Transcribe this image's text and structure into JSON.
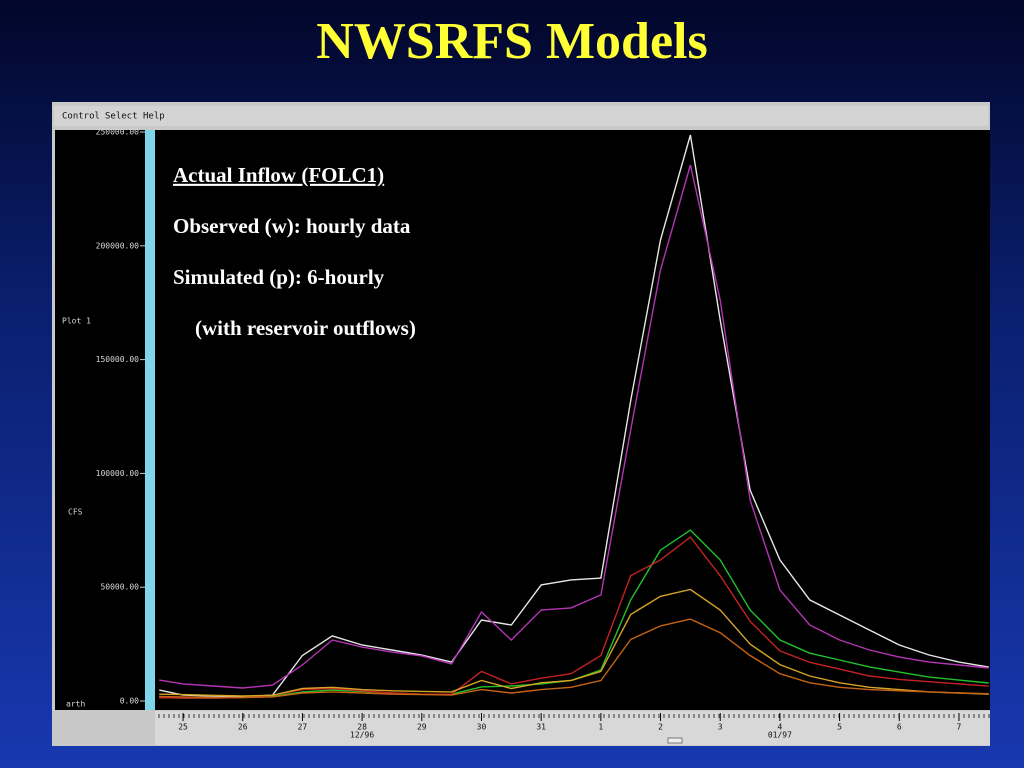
{
  "slide_title": "NWSRFS Models",
  "window": {
    "menu": [
      "Control",
      "Select",
      "Help"
    ],
    "side_labels": [
      "Plot 1",
      "CFS",
      "arth"
    ]
  },
  "chart_data": {
    "type": "line",
    "annotations": [
      "Actual Inflow (FOLC1)",
      "Observed (w): hourly data",
      "Simulated (p): 6-hourly",
      "(with reservoir outflows)"
    ],
    "x": [
      -0.4,
      0,
      0.5,
      1,
      1.5,
      2,
      2.5,
      3,
      3.5,
      4,
      4.5,
      5,
      5.5,
      6,
      6.5,
      7,
      7.5,
      8,
      8.5,
      9,
      9.5,
      10,
      10.5,
      11,
      11.5,
      12,
      12.5,
      13,
      13.5
    ],
    "xlim": [
      -0.47,
      13.52
    ],
    "xticks": [
      {
        "value": 0,
        "label": "25"
      },
      {
        "value": 1,
        "label": "26"
      },
      {
        "value": 2,
        "label": "27"
      },
      {
        "value": 3,
        "label": "28"
      },
      {
        "value": 4,
        "label": "29"
      },
      {
        "value": 5,
        "label": "30"
      },
      {
        "value": 6,
        "label": "31"
      },
      {
        "value": 7,
        "label": "1"
      },
      {
        "value": 8,
        "label": "2"
      },
      {
        "value": 9,
        "label": "3"
      },
      {
        "value": 10,
        "label": "4"
      },
      {
        "value": 11,
        "label": "5"
      },
      {
        "value": 12,
        "label": "6"
      },
      {
        "value": 13,
        "label": "7"
      }
    ],
    "date_labels": [
      {
        "value": 3,
        "label": "12/96"
      },
      {
        "value": 10,
        "label": "01/97"
      }
    ],
    "ylim": [
      0,
      250000
    ],
    "yticks": [
      {
        "value": 0,
        "label": "0.00"
      },
      {
        "value": 50000,
        "label": "50000.00"
      },
      {
        "value": 100000,
        "label": "100000.00"
      },
      {
        "value": 150000,
        "label": "150000.00"
      },
      {
        "value": 200000,
        "label": "200000.00"
      },
      {
        "value": 250000,
        "label": "250000.00"
      }
    ],
    "series": [
      {
        "color": "#e6e6e6",
        "values": [
          4800,
          2600,
          2200,
          1800,
          2600,
          20000,
          28600,
          24600,
          22400,
          20200,
          17100,
          35600,
          33400,
          51000,
          53200,
          54000,
          132000,
          202600,
          248700,
          167400,
          92700,
          62000,
          44400,
          37800,
          31200,
          24600,
          20200,
          17100,
          14900
        ]
      },
      {
        "color": "#b435b4",
        "values": [
          9200,
          7500,
          6600,
          5700,
          7000,
          15800,
          26800,
          23700,
          21500,
          19800,
          16300,
          39100,
          26800,
          40000,
          40900,
          46600,
          119100,
          189400,
          235500,
          176200,
          88300,
          48800,
          33400,
          26800,
          22400,
          19300,
          17100,
          15800,
          14500
        ]
      },
      {
        "color": "#22c22a",
        "values": [
          1500,
          1300,
          1300,
          1500,
          2000,
          4000,
          4800,
          4200,
          3500,
          3000,
          3000,
          6200,
          6600,
          7500,
          9000,
          13600,
          44400,
          66300,
          75100,
          62000,
          40000,
          26800,
          21000,
          18000,
          15000,
          12700,
          10500,
          9200,
          7900
        ]
      },
      {
        "color": "#c42222",
        "values": [
          1500,
          1300,
          1300,
          1500,
          2500,
          5000,
          5500,
          4500,
          3500,
          3000,
          3000,
          13000,
          7500,
          10000,
          12000,
          20000,
          55000,
          62000,
          72000,
          55000,
          35000,
          22000,
          17000,
          14000,
          11000,
          9500,
          8500,
          7500,
          6500
        ]
      },
      {
        "color": "#d4a424",
        "values": [
          3000,
          2800,
          2500,
          2200,
          2500,
          5500,
          6000,
          5000,
          4500,
          4200,
          4000,
          9000,
          5500,
          8000,
          9000,
          13000,
          38000,
          46000,
          49000,
          40000,
          25000,
          16000,
          11000,
          8000,
          6000,
          5000,
          4000,
          3500,
          3000
        ]
      },
      {
        "color": "#c46414",
        "values": [
          2000,
          1800,
          1600,
          1500,
          1800,
          3500,
          4000,
          3500,
          3000,
          2800,
          2600,
          5000,
          3500,
          5000,
          6000,
          9000,
          27000,
          33000,
          36000,
          30000,
          20000,
          12000,
          8000,
          6000,
          5000,
          4500,
          4000,
          3500,
          3200
        ]
      }
    ]
  }
}
